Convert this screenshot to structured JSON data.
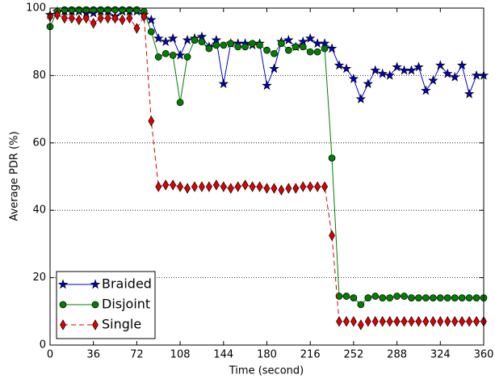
{
  "chart_data": {
    "type": "line",
    "xlabel": "Time (second)",
    "ylabel": "Average PDR (%)",
    "x": [
      0,
      6,
      12,
      18,
      24,
      30,
      36,
      42,
      48,
      54,
      60,
      66,
      72,
      78,
      84,
      90,
      96,
      102,
      108,
      114,
      120,
      126,
      132,
      138,
      144,
      150,
      156,
      162,
      168,
      174,
      180,
      186,
      192,
      198,
      204,
      210,
      216,
      222,
      228,
      234,
      240,
      246,
      252,
      258,
      264,
      270,
      276,
      282,
      288,
      294,
      300,
      306,
      312,
      318,
      324,
      330,
      336,
      342,
      348,
      354,
      360
    ],
    "series": [
      {
        "name": "Braided",
        "color": "#0000cc",
        "marker": "star",
        "line_style": "solid",
        "values": [
          98,
          99,
          99,
          99,
          99,
          98.5,
          98.5,
          99,
          99,
          97.5,
          99,
          99,
          99,
          98,
          96.5,
          91,
          90,
          91,
          86,
          90.5,
          91,
          91.5,
          88.5,
          90.5,
          77.5,
          89.5,
          89.5,
          89.5,
          89,
          89.5,
          77,
          82,
          90,
          90.5,
          88.5,
          90,
          91,
          89.5,
          89.5,
          88,
          83,
          82,
          79,
          73,
          77.5,
          81.5,
          80.5,
          80,
          82.5,
          81.5,
          81.5,
          82.5,
          75.5,
          78.5,
          83,
          80.5,
          79.5,
          83,
          74.5,
          80,
          80
        ]
      },
      {
        "name": "Disjoint",
        "color": "#007f00",
        "marker": "circle",
        "line_style": "solid",
        "values": [
          94.5,
          99,
          99.5,
          99.5,
          99.5,
          99.5,
          99.5,
          99.5,
          99.5,
          99.5,
          99.5,
          99.5,
          99.5,
          99,
          93,
          85.5,
          86.5,
          86,
          72,
          85.5,
          90.5,
          90,
          88,
          89,
          89,
          89.5,
          88.5,
          88.5,
          89.5,
          89,
          87.5,
          86.5,
          89.5,
          87.5,
          88.5,
          88.5,
          87,
          87,
          88,
          55.5,
          14.5,
          14.5,
          14,
          12,
          14,
          14.5,
          14,
          14,
          14.5,
          14.5,
          14,
          14,
          14,
          14,
          14,
          14,
          14,
          14,
          14,
          14,
          14
        ]
      },
      {
        "name": "Single",
        "color": "#e00000",
        "marker": "diamond",
        "line_style": "dashed",
        "values": [
          97.5,
          98,
          97,
          97,
          96.5,
          97,
          95.5,
          97,
          97,
          97,
          96.5,
          97,
          94,
          97.5,
          66.5,
          47,
          47.5,
          47.5,
          47,
          46.5,
          47,
          47,
          47,
          47.5,
          47,
          46.5,
          47,
          47.5,
          47,
          47,
          46.5,
          46.5,
          46,
          46.5,
          46.5,
          47,
          47,
          47,
          47,
          32.5,
          7,
          7,
          7,
          6,
          7,
          7,
          7,
          7,
          7,
          7,
          7,
          7,
          7,
          7,
          7,
          7,
          7,
          7,
          7,
          7,
          7
        ]
      }
    ],
    "xlim": [
      0,
      360
    ],
    "xticks": [
      0,
      36,
      72,
      108,
      144,
      180,
      216,
      252,
      288,
      324,
      360
    ],
    "ylim": [
      0,
      100
    ],
    "yticks": [
      0,
      20,
      40,
      60,
      80,
      100
    ],
    "grid": "y",
    "legend": "lower left"
  }
}
